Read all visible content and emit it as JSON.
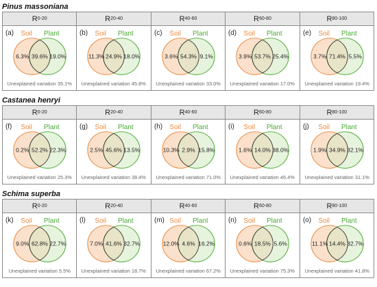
{
  "set_labels": {
    "left": "Soil",
    "right": "Plant"
  },
  "unexplained_prefix": "Unexplained variation",
  "colors": {
    "soil": "#e8873a",
    "plant": "#4aa832",
    "soil_fill": "#fbe1cc",
    "plant_fill": "#ddf0d2",
    "overlap_fill": "#e9dcc0",
    "header_bg": "#e6e6e6"
  },
  "depths": [
    {
      "base": "R",
      "sub": "0-20"
    },
    {
      "base": "R",
      "sub": "20-40"
    },
    {
      "base": "R",
      "sub": "40-60"
    },
    {
      "base": "R",
      "sub": "60-80"
    },
    {
      "base": "R",
      "sub": "80-100"
    }
  ],
  "chart_data": {
    "type": "venn",
    "sections": [
      {
        "title": "Pinus massoniana",
        "panels": [
          {
            "letter": "(a)",
            "soil": "6.3%",
            "shared": "39.6%",
            "plant": "19.0%",
            "unexplained": "35.1%"
          },
          {
            "letter": "(b)",
            "soil": "11.3%",
            "shared": "24.9%",
            "plant": "18.0%",
            "unexplained": "45.8%"
          },
          {
            "letter": "(c)",
            "soil": "3.6%",
            "shared": "54.3%",
            "plant": "9.1%",
            "unexplained": "33.0%"
          },
          {
            "letter": "(d)",
            "soil": "3.9%",
            "shared": "53.7%",
            "plant": "25.4%",
            "unexplained": "17.0%"
          },
          {
            "letter": "(e)",
            "soil": "3.7%",
            "shared": "71.4%",
            "plant": "5.5%",
            "unexplained": "19.4%"
          }
        ]
      },
      {
        "title": "Castanea henryi",
        "panels": [
          {
            "letter": "(f)",
            "soil": "0.2%",
            "shared": "52.2%",
            "plant": "22.3%",
            "unexplained": "25.3%"
          },
          {
            "letter": "(g)",
            "soil": "2.5%",
            "shared": "45.6%",
            "plant": "13.5%",
            "unexplained": "38.4%"
          },
          {
            "letter": "(h)",
            "soil": "10.3%",
            "shared": "2.9%",
            "plant": "15.8%",
            "unexplained": "71.0%"
          },
          {
            "letter": "(i)",
            "soil": "1.6%",
            "shared": "14.0%",
            "plant": "38.0%",
            "unexplained": "46.4%"
          },
          {
            "letter": "(j)",
            "soil": "1.9%",
            "shared": "34.9%",
            "plant": "32.1%",
            "unexplained": "31.1%"
          }
        ]
      },
      {
        "title": "Schima superba",
        "panels": [
          {
            "letter": "(k)",
            "soil": "9.0%",
            "shared": "62.8%",
            "plant": "22.7%",
            "unexplained": "5.5%"
          },
          {
            "letter": "(l)",
            "soil": "7.0%",
            "shared": "41.6%",
            "plant": "32.7%",
            "unexplained": "18.7%"
          },
          {
            "letter": "(m)",
            "soil": "12.0%",
            "shared": "4.6%",
            "plant": "16.2%",
            "unexplained": "67.2%"
          },
          {
            "letter": "(n)",
            "soil": "0.6%",
            "shared": "18.5%",
            "plant": "5.6%",
            "unexplained": "75.3%"
          },
          {
            "letter": "(o)",
            "soil": "11.1%",
            "shared": "14.4%",
            "plant": "32.7%",
            "unexplained": "41.8%"
          }
        ]
      }
    ]
  }
}
